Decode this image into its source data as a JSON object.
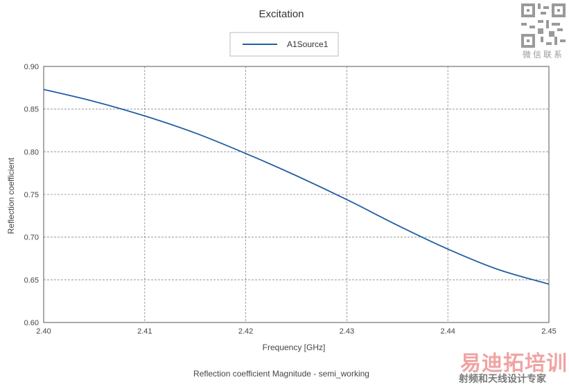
{
  "chart_data": {
    "type": "line",
    "title": "Excitation",
    "subtitle": "Reflection coefficient Magnitude - semi_working",
    "xlabel": "Frequency [GHz]",
    "ylabel": "Reflection coefficient",
    "xlim": [
      2.4,
      2.45
    ],
    "ylim": [
      0.6,
      0.9
    ],
    "xticks": [
      "2.40",
      "2.41",
      "2.42",
      "2.43",
      "2.44",
      "2.45"
    ],
    "yticks": [
      "0.60",
      "0.65",
      "0.70",
      "0.75",
      "0.80",
      "0.85",
      "0.90"
    ],
    "grid": true,
    "legend_position": "top-center",
    "series": [
      {
        "name": "A1Source1",
        "color": "#1f5fa0",
        "x": [
          2.4,
          2.405,
          2.41,
          2.415,
          2.42,
          2.425,
          2.43,
          2.435,
          2.44,
          2.445,
          2.45
        ],
        "y": [
          0.873,
          0.859,
          0.842,
          0.822,
          0.798,
          0.772,
          0.744,
          0.714,
          0.686,
          0.662,
          0.645
        ]
      }
    ]
  },
  "watermark": {
    "qr_caption": "微信联系",
    "brand": "易迪拓培训",
    "tagline": "射频和天线设计专家"
  }
}
